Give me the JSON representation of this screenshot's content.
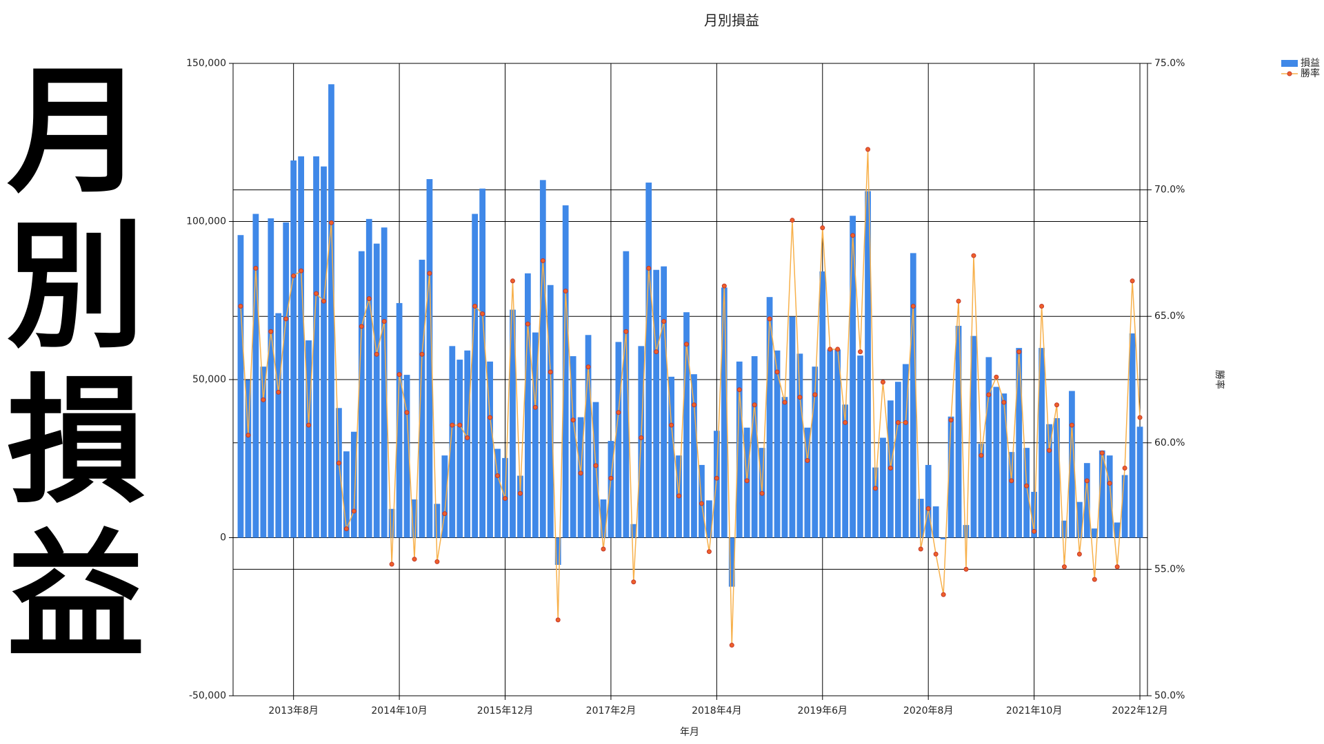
{
  "banner_title": "月別損益",
  "chart_data": {
    "type": "bar",
    "title": "月別損益",
    "x_label": "年月",
    "y2_label": "勝率",
    "categories": [
      null,
      null,
      null,
      null,
      null,
      null,
      null,
      "2013年8月",
      null,
      null,
      null,
      null,
      null,
      null,
      null,
      null,
      null,
      null,
      null,
      null,
      null,
      "2014年10月",
      null,
      null,
      null,
      null,
      null,
      null,
      null,
      null,
      null,
      null,
      null,
      null,
      null,
      "2015年12月",
      null,
      null,
      null,
      null,
      null,
      null,
      null,
      null,
      null,
      null,
      null,
      null,
      null,
      "2017年2月",
      null,
      null,
      null,
      null,
      null,
      null,
      null,
      null,
      null,
      null,
      null,
      null,
      null,
      "2018年4月",
      null,
      null,
      null,
      null,
      null,
      null,
      null,
      null,
      null,
      null,
      null,
      null,
      null,
      "2019年6月",
      null,
      null,
      null,
      null,
      null,
      null,
      null,
      null,
      null,
      null,
      null,
      null,
      null,
      "2020年8月",
      null,
      null,
      null,
      null,
      null,
      null,
      null,
      null,
      null,
      null,
      null,
      null,
      null,
      "2021年10月",
      null,
      null,
      null,
      null,
      null,
      null,
      null,
      null,
      null,
      null,
      null,
      null,
      null,
      "2022年12月"
    ],
    "series": [
      {
        "name": "損益",
        "type": "bar",
        "color": "#3f88e8",
        "values": [
          95700,
          49900,
          102400,
          54100,
          101000,
          71000,
          99700,
          119300,
          120600,
          62400,
          120600,
          117400,
          143400,
          41000,
          27300,
          33500,
          90600,
          100800,
          93000,
          98100,
          9100,
          74200,
          51500,
          12100,
          87900,
          113400,
          10700,
          26000,
          60600,
          56300,
          59200,
          102400,
          110400,
          55700,
          28100,
          25200,
          72100,
          19600,
          83600,
          64900,
          113100,
          79900,
          -8600,
          105100,
          57400,
          38100,
          64100,
          42900,
          12100,
          30600,
          61900,
          90600,
          4300,
          60600,
          112300,
          84700,
          85800,
          50900,
          26000,
          71300,
          51700,
          23000,
          11800,
          33800,
          79100,
          -15500,
          55700,
          34800,
          57400,
          28400,
          76100,
          59200,
          44500,
          69900,
          58200,
          34800,
          54100,
          84200,
          59500,
          59500,
          42100,
          101800,
          57600,
          109600,
          22200,
          31600,
          43400,
          49300,
          54900,
          90000,
          12300,
          23000,
          9900,
          -500,
          38300,
          67000,
          4000,
          63800,
          29700,
          57100,
          47700,
          45600,
          27100,
          60000,
          28400,
          14500,
          60000,
          35900,
          37800,
          5400,
          46400,
          11300,
          23600,
          2900,
          27600,
          26000,
          4800,
          19800,
          64600,
          35100
        ]
      },
      {
        "name": "勝率",
        "type": "line",
        "axis": "y2",
        "color": "#f7b04a",
        "marker_color": "#f0602a",
        "values": [
          65.4,
          60.3,
          66.9,
          61.7,
          64.4,
          62.0,
          64.9,
          66.6,
          66.8,
          60.7,
          65.9,
          65.6,
          68.7,
          59.2,
          56.6,
          57.3,
          64.6,
          65.7,
          63.5,
          64.8,
          55.2,
          62.7,
          61.2,
          55.4,
          63.5,
          66.7,
          55.3,
          57.2,
          60.7,
          60.7,
          60.2,
          65.4,
          65.1,
          61.0,
          58.7,
          57.8,
          66.4,
          58.0,
          64.7,
          61.4,
          67.2,
          62.8,
          53.0,
          66.0,
          60.9,
          58.8,
          63.0,
          59.1,
          55.8,
          58.6,
          61.2,
          64.4,
          54.5,
          60.2,
          66.9,
          63.6,
          64.8,
          60.7,
          57.9,
          63.9,
          61.5,
          57.6,
          55.7,
          58.6,
          66.2,
          52.0,
          62.1,
          58.5,
          61.5,
          58.0,
          64.9,
          62.8,
          61.6,
          68.8,
          61.8,
          59.3,
          61.9,
          68.5,
          63.7,
          63.7,
          60.8,
          68.2,
          63.6,
          71.6,
          58.2,
          62.4,
          59.0,
          60.8,
          60.8,
          65.4,
          55.8,
          57.4,
          55.6,
          54.0,
          60.9,
          65.6,
          55.0,
          67.4,
          59.5,
          61.9,
          62.6,
          61.6,
          58.5,
          63.6,
          58.3,
          56.5,
          65.4,
          59.7,
          61.5,
          55.1,
          60.7,
          55.6,
          58.5,
          54.6,
          59.6,
          58.4,
          55.1,
          59.0,
          66.4,
          61.0
        ]
      }
    ],
    "ylim": [
      -50000,
      150000
    ],
    "yticks": [
      {
        "value": -50000,
        "label": "-50,000"
      },
      0,
      {
        "value": 50000,
        "label": "50,000"
      },
      {
        "value": 100000,
        "label": "100,000"
      },
      {
        "value": 150000,
        "label": "150,000"
      }
    ],
    "y2lim": [
      50,
      75
    ],
    "y2ticks": [
      {
        "value": 50,
        "label": "50.0%"
      },
      {
        "value": 55,
        "label": "55.0%"
      },
      {
        "value": 60,
        "label": "60.0%"
      },
      {
        "value": 65,
        "label": "65.0%"
      },
      {
        "value": 70,
        "label": "70.0%"
      },
      {
        "value": 75,
        "label": "75.0%"
      }
    ],
    "grid": true,
    "legend": "top-right"
  }
}
